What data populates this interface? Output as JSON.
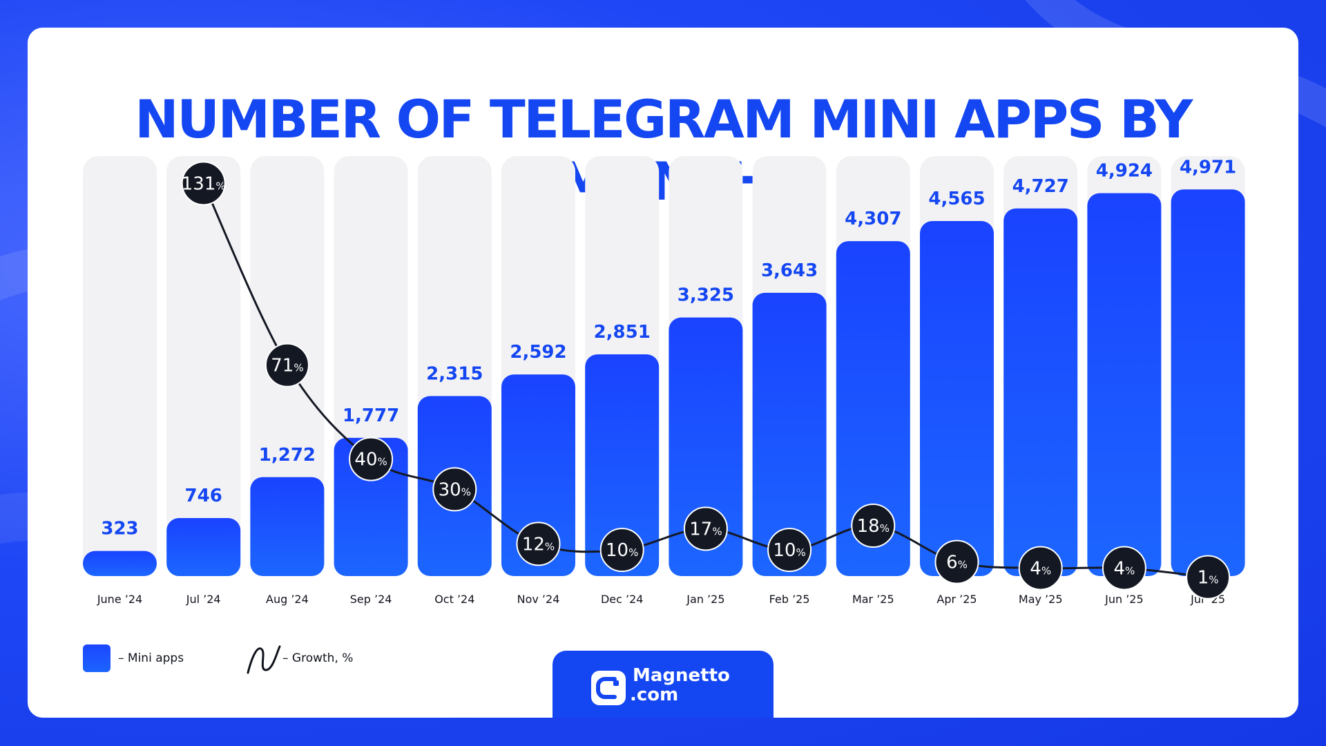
{
  "title": "NUMBER OF TELEGRAM MINI APPS BY MONTH",
  "legend": {
    "bars_label": "– Mini apps",
    "line_label": "– Growth, %"
  },
  "brand": {
    "name": "Magnetto",
    "domain": ".com"
  },
  "colors": {
    "accent": "#1446f2",
    "bar": "#1c53ff",
    "track": "#f2f2f5",
    "bubble": "#141823"
  },
  "chart_data": {
    "type": "bar",
    "title": "NUMBER OF TELEGRAM MINI APPS BY MONTH",
    "categories": [
      "June ’24",
      "Jul ’24",
      "Aug ’24",
      "Sep ’24",
      "Oct ’24",
      "Nov ’24",
      "Dec ’24",
      "Jan ’25",
      "Feb ’25",
      "Mar ’25",
      "Apr ’25",
      "May ’25",
      "Jun ’25",
      "Jul ’25"
    ],
    "series": [
      {
        "name": "Mini apps",
        "type": "bar",
        "values": [
          323,
          746,
          1272,
          1777,
          2315,
          2592,
          2851,
          3325,
          3643,
          4307,
          4565,
          4727,
          4924,
          4971
        ],
        "labels": [
          "323",
          "746",
          "1,272",
          "1,777",
          "2,315",
          "2,592",
          "2,851",
          "3,325",
          "3,643",
          "4,307",
          "4,565",
          "4,727",
          "4,924",
          "4,971"
        ]
      },
      {
        "name": "Growth, %",
        "type": "line",
        "values": [
          null,
          131,
          71,
          40,
          30,
          12,
          10,
          17,
          10,
          18,
          6,
          4,
          4,
          1
        ]
      }
    ],
    "percent_suffix": "%",
    "ylim": [
      0,
      5400
    ],
    "xlabel": "",
    "ylabel": "",
    "legend_position": "bottom-left"
  }
}
